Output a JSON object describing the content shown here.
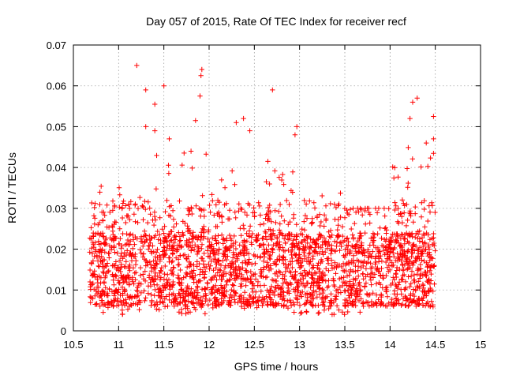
{
  "chart_data": {
    "type": "scatter",
    "title": "Day 057 of 2015, Rate Of TEC Index for receiver recf",
    "xlabel": "GPS time / hours",
    "ylabel": "ROTI / TECUs",
    "xlim": [
      10.5,
      15
    ],
    "ylim": [
      0,
      0.07
    ],
    "xticks": [
      "10.5",
      "11",
      "11.5",
      "12",
      "12.5",
      "13",
      "13.5",
      "14",
      "14.5",
      "15"
    ],
    "yticks": [
      "0",
      "0.01",
      "0.02",
      "0.03",
      "0.04",
      "0.05",
      "0.06",
      "0.07"
    ],
    "grid": true,
    "marker": "+",
    "series_color": "#ff0000",
    "x_range_of_data": [
      10.68,
      14.5
    ],
    "notable_points": [
      {
        "x": 11.2,
        "y": 0.065
      },
      {
        "x": 11.92,
        "y": 0.064
      },
      {
        "x": 11.91,
        "y": 0.0625
      },
      {
        "x": 11.5,
        "y": 0.06
      },
      {
        "x": 11.3,
        "y": 0.059
      },
      {
        "x": 12.7,
        "y": 0.059
      },
      {
        "x": 14.3,
        "y": 0.057
      },
      {
        "x": 14.25,
        "y": 0.056
      },
      {
        "x": 11.9,
        "y": 0.0575
      },
      {
        "x": 11.4,
        "y": 0.0555
      },
      {
        "x": 14.48,
        "y": 0.0525
      },
      {
        "x": 14.22,
        "y": 0.052
      },
      {
        "x": 12.38,
        "y": 0.052
      },
      {
        "x": 11.85,
        "y": 0.0515
      },
      {
        "x": 12.3,
        "y": 0.051
      },
      {
        "x": 12.97,
        "y": 0.05
      },
      {
        "x": 11.3,
        "y": 0.05
      },
      {
        "x": 12.45,
        "y": 0.049
      },
      {
        "x": 11.4,
        "y": 0.049
      },
      {
        "x": 11.56,
        "y": 0.047
      },
      {
        "x": 14.48,
        "y": 0.047
      },
      {
        "x": 12.95,
        "y": 0.048
      },
      {
        "x": 14.4,
        "y": 0.046
      },
      {
        "x": 12.65,
        "y": 0.0415
      },
      {
        "x": 11.8,
        "y": 0.044
      }
    ],
    "density_profile": [
      {
        "x_start": 10.68,
        "x_end": 11.0,
        "typical_min": 0.004,
        "typical_max": 0.037
      },
      {
        "x_start": 11.0,
        "x_end": 11.5,
        "typical_min": 0.004,
        "typical_max": 0.045
      },
      {
        "x_start": 11.5,
        "x_end": 12.0,
        "typical_min": 0.004,
        "typical_max": 0.045
      },
      {
        "x_start": 12.0,
        "x_end": 12.5,
        "typical_min": 0.005,
        "typical_max": 0.04
      },
      {
        "x_start": 12.5,
        "x_end": 13.0,
        "typical_min": 0.004,
        "typical_max": 0.04
      },
      {
        "x_start": 13.0,
        "x_end": 13.5,
        "typical_min": 0.004,
        "typical_max": 0.034
      },
      {
        "x_start": 13.5,
        "x_end": 14.0,
        "typical_min": 0.004,
        "typical_max": 0.03
      },
      {
        "x_start": 14.0,
        "x_end": 14.5,
        "typical_min": 0.005,
        "typical_max": 0.045
      }
    ]
  }
}
